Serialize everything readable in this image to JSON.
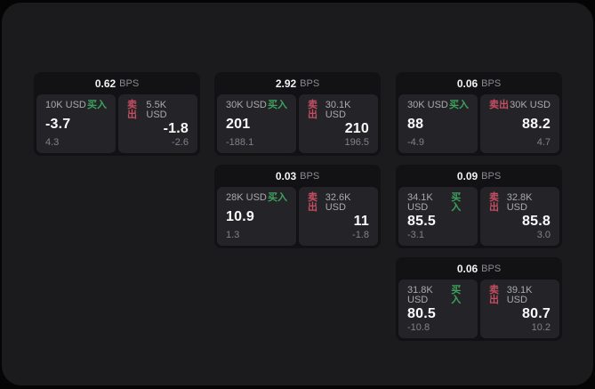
{
  "labels": {
    "buy": "买入",
    "sell": "卖出",
    "bps_unit": "BPS"
  },
  "colors": {
    "window_bg": "#1b1b1d",
    "card_bg": "#121214",
    "panel_bg": "#242428",
    "buy_green": "#3da35c",
    "sell_red": "#c54e62"
  },
  "cards": [
    {
      "bps": "0.62",
      "buy_size": "10K USD",
      "buy_value": "-3.7",
      "buy_delta": "4.3",
      "sell_size": "5.5K USD",
      "sell_value": "-1.8",
      "sell_delta": "-2.6"
    },
    {
      "bps": "2.92",
      "buy_size": "30K USD",
      "buy_value": "201",
      "buy_delta": "-188.1",
      "sell_size": "30.1K USD",
      "sell_value": "210",
      "sell_delta": "196.5"
    },
    {
      "bps": "0.06",
      "buy_size": "30K USD",
      "buy_value": "88",
      "buy_delta": "-4.9",
      "sell_size": "30K USD",
      "sell_value": "88.2",
      "sell_delta": "4.7"
    },
    {
      "bps": "0.03",
      "buy_size": "28K USD",
      "buy_value": "10.9",
      "buy_delta": "1.3",
      "sell_size": "32.6K USD",
      "sell_value": "11",
      "sell_delta": "-1.8"
    },
    {
      "bps": "0.09",
      "buy_size": "34.1K USD",
      "buy_value": "85.5",
      "buy_delta": "-3.1",
      "sell_size": "32.8K USD",
      "sell_value": "85.8",
      "sell_delta": "3.0"
    },
    {
      "bps": "0.06",
      "buy_size": "31.8K USD",
      "buy_value": "80.5",
      "buy_delta": "-10.8",
      "sell_size": "39.1K USD",
      "sell_value": "80.7",
      "sell_delta": "10.2"
    }
  ]
}
